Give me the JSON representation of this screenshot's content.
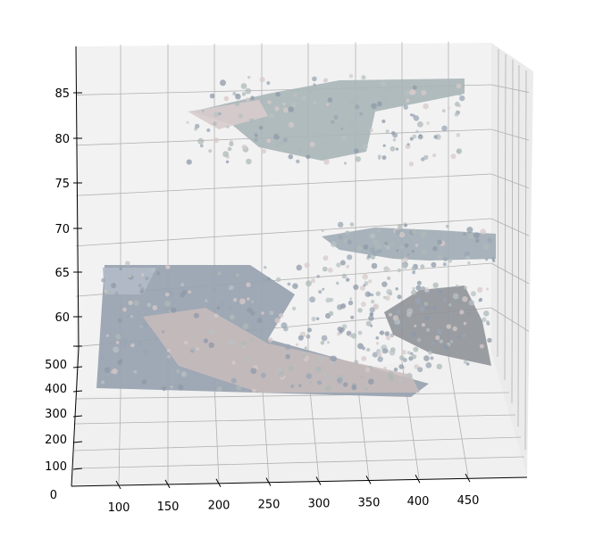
{
  "chart_data": {
    "type": "scatter",
    "projection": "3d",
    "title": "",
    "xlabel": "",
    "ylabel": "",
    "zlabel": "",
    "xlim": [
      60,
      500
    ],
    "ylim": [
      0,
      560
    ],
    "zlim": [
      55,
      90
    ],
    "grid": true,
    "legend": "none",
    "x_ticks": [
      100,
      150,
      200,
      250,
      300,
      350,
      400,
      450
    ],
    "y_ticks": [
      0,
      100,
      200,
      300,
      400,
      500
    ],
    "z_ticks": [
      60,
      65,
      70,
      75,
      80,
      85
    ],
    "point_colors": [
      "#9aa5b4",
      "#b8c2c4",
      "#d7c9c9",
      "#8e9aa8",
      "#aeb9b8"
    ],
    "clusters": [
      {
        "id": "ground-plane",
        "x": [
          75,
          330
        ],
        "y": [
          0,
          560
        ],
        "z": [
          55,
          66
        ]
      },
      {
        "id": "ground-streak",
        "x": [
          230,
          430
        ],
        "y": [
          380,
          560
        ],
        "z": [
          57,
          62
        ]
      },
      {
        "id": "upper-structure",
        "x": [
          220,
          480
        ],
        "y": [
          300,
          500
        ],
        "z": [
          78,
          88
        ]
      },
      {
        "id": "mid-structure",
        "x": [
          370,
          500
        ],
        "y": [
          250,
          460
        ],
        "z": [
          64,
          70
        ]
      },
      {
        "id": "lower-right-structure",
        "x": [
          400,
          500
        ],
        "y": [
          150,
          400
        ],
        "z": [
          55,
          63
        ]
      }
    ]
  }
}
